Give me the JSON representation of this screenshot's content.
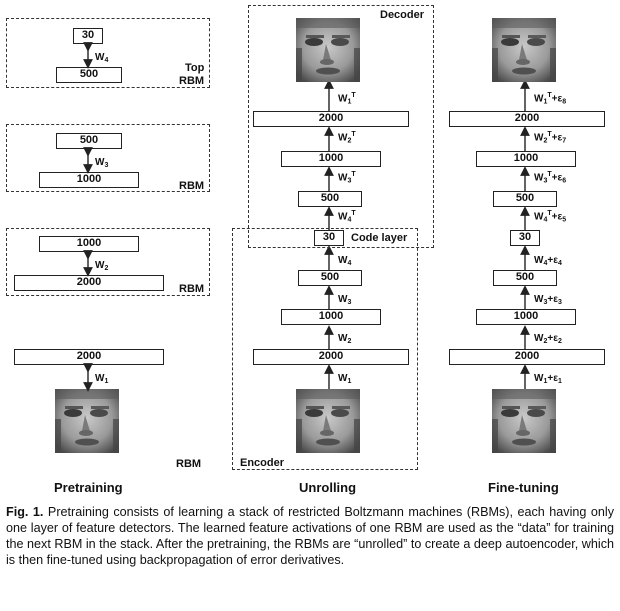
{
  "pretraining": {
    "rbm_top": {
      "upper": "30",
      "lower": "500",
      "weight": "W",
      "weight_sub": "4",
      "label_line1": "Top",
      "label_line2": "RBM"
    },
    "rbm_3": {
      "upper": "500",
      "lower": "1000",
      "weight": "W",
      "weight_sub": "3",
      "label": "RBM"
    },
    "rbm_2": {
      "upper": "1000",
      "lower": "2000",
      "weight": "W",
      "weight_sub": "2",
      "label": "RBM"
    },
    "rbm_1": {
      "upper": "2000",
      "weight": "W",
      "weight_sub": "1",
      "label": "RBM"
    },
    "title": "Pretraining"
  },
  "unrolling": {
    "decoder_label": "Decoder",
    "encoder_label": "Encoder",
    "code_label": "Code layer",
    "decoder_layers": [
      "2000",
      "1000",
      "500"
    ],
    "decoder_weights": [
      {
        "w": "W",
        "sub": "1",
        "sup": "T"
      },
      {
        "w": "W",
        "sub": "2",
        "sup": "T"
      },
      {
        "w": "W",
        "sub": "3",
        "sup": "T"
      },
      {
        "w": "W",
        "sub": "4",
        "sup": "T"
      }
    ],
    "code": "30",
    "encoder_layers": [
      "500",
      "1000",
      "2000"
    ],
    "encoder_weights": [
      {
        "w": "W",
        "sub": "4"
      },
      {
        "w": "W",
        "sub": "3"
      },
      {
        "w": "W",
        "sub": "2"
      },
      {
        "w": "W",
        "sub": "1"
      }
    ],
    "title": "Unrolling"
  },
  "finetuning": {
    "decoder_layers": [
      "2000",
      "1000",
      "500"
    ],
    "decoder_weights": [
      {
        "w": "W",
        "sub": "1",
        "sup": "T",
        "eps": "+ε",
        "eps_sub": "8"
      },
      {
        "w": "W",
        "sub": "2",
        "sup": "T",
        "eps": "+ε",
        "eps_sub": "7"
      },
      {
        "w": "W",
        "sub": "3",
        "sup": "T",
        "eps": "+ε",
        "eps_sub": "6"
      },
      {
        "w": "W",
        "sub": "4",
        "sup": "T",
        "eps": "+ε",
        "eps_sub": "5"
      }
    ],
    "code": "30",
    "encoder_layers": [
      "500",
      "1000",
      "2000"
    ],
    "encoder_weights": [
      {
        "w": "W",
        "sub": "4",
        "eps": "+ε",
        "eps_sub": "4"
      },
      {
        "w": "W",
        "sub": "3",
        "eps": "+ε",
        "eps_sub": "3"
      },
      {
        "w": "W",
        "sub": "2",
        "eps": "+ε",
        "eps_sub": "2"
      },
      {
        "w": "W",
        "sub": "1",
        "eps": "+ε",
        "eps_sub": "1"
      }
    ],
    "title": "Fine-tuning"
  },
  "caption": {
    "label": "Fig. 1.",
    "text": "Pretraining consists of learning a stack of restricted Boltzmann machines (RBMs), each having only one layer of feature detectors. The learned feature activations of one RBM are used as the “data” for training the next RBM in the stack. After the pretraining, the RBMs are “unrolled” to create a deep autoencoder, which is then fine-tuned using backpropagation of error derivatives."
  }
}
